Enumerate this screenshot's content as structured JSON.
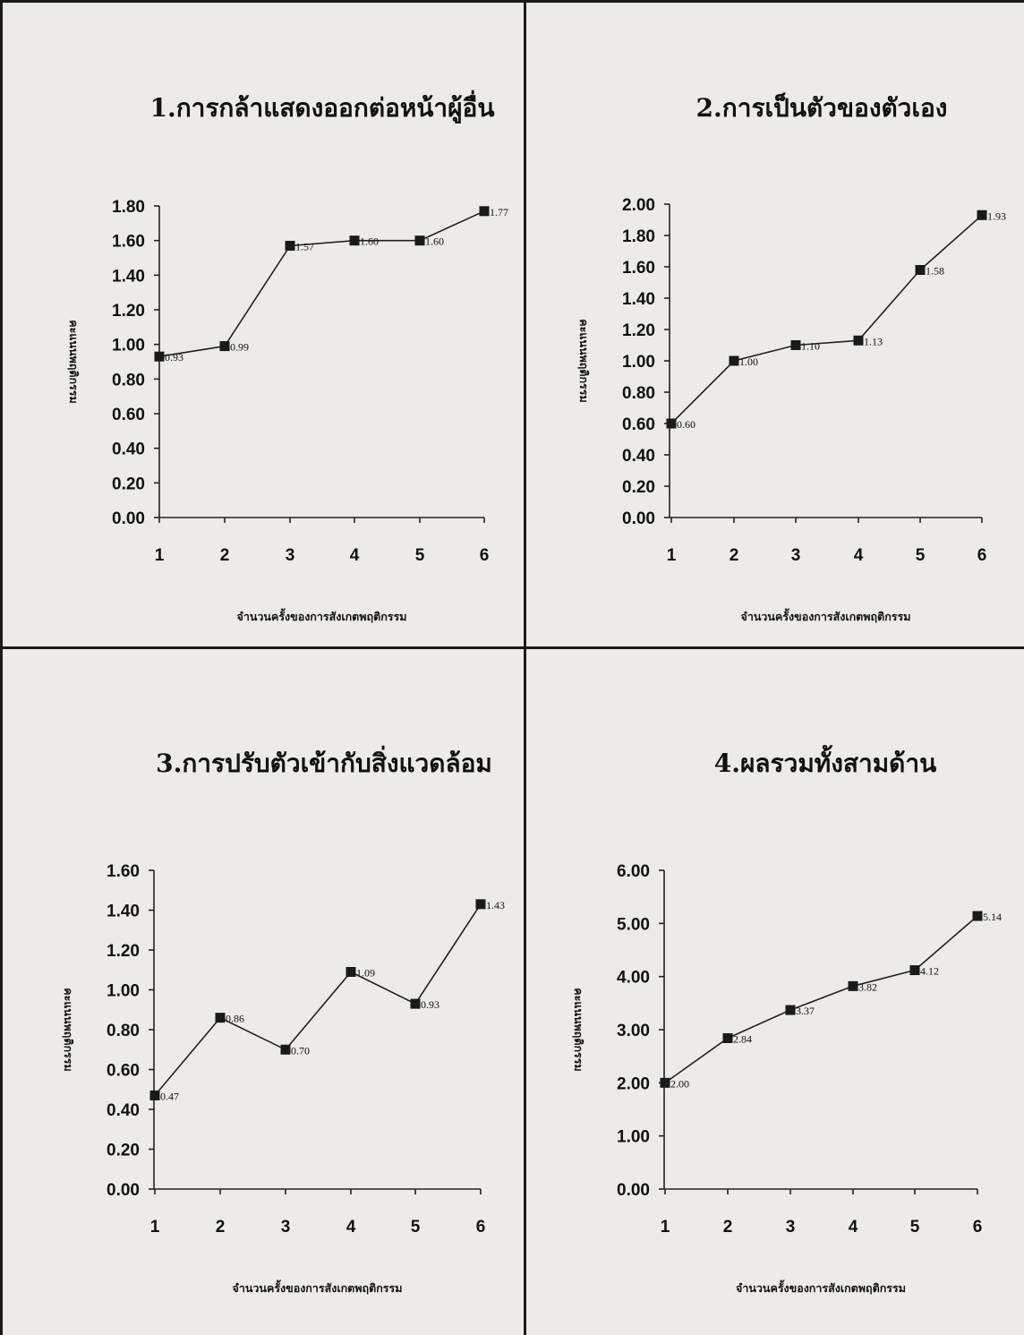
{
  "chart_data": [
    {
      "type": "line",
      "title": "1.การกล้าแสดงออกต่อหน้าผู้อื่น",
      "xlabel": "จำนวนครั้งของการสังเกตพฤติกรรม",
      "ylabel": "คะแนนพฤติกรรม",
      "x": [
        "1",
        "2",
        "3",
        "4",
        "5",
        "6"
      ],
      "values": [
        0.93,
        0.99,
        1.57,
        1.6,
        1.6,
        1.77
      ],
      "value_labels": [
        "0.93",
        "0.99",
        "1.57",
        "1.60",
        "1.60",
        "1.77"
      ],
      "ylim": [
        0,
        1.8
      ],
      "yticks": [
        "0.00",
        "0.20",
        "0.40",
        "0.60",
        "0.80",
        "1.00",
        "1.20",
        "1.40",
        "1.60",
        "1.80"
      ],
      "marker": "square",
      "grid": false
    },
    {
      "type": "line",
      "title": "2.การเป็นตัวของตัวเอง",
      "xlabel": "จำนวนครั้งของการสังเกตพฤติกรรม",
      "ylabel": "คะแนนพฤติกรรม",
      "x": [
        "1",
        "2",
        "3",
        "4",
        "5",
        "6"
      ],
      "values": [
        0.6,
        1.0,
        1.1,
        1.13,
        1.58,
        1.93
      ],
      "value_labels": [
        "0.60",
        "1.00",
        "1.10",
        "1.13",
        "1.58",
        "1.93"
      ],
      "ylim": [
        0,
        2.0
      ],
      "yticks": [
        "0.00",
        "0.20",
        "0.40",
        "0.60",
        "0.80",
        "1.00",
        "1.20",
        "1.40",
        "1.60",
        "1.80",
        "2.00"
      ],
      "marker": "square",
      "grid": false
    },
    {
      "type": "line",
      "title": "3.การปรับตัวเข้ากับสิ่งแวดล้อม",
      "xlabel": "จำนวนครั้งของการสังเกตพฤติกรรม",
      "ylabel": "คะแนนพฤติกรรม",
      "x": [
        "1",
        "2",
        "3",
        "4",
        "5",
        "6"
      ],
      "values": [
        0.47,
        0.86,
        0.7,
        1.09,
        0.93,
        1.43
      ],
      "value_labels": [
        "0.47",
        "0.86",
        "0.70",
        "1.09",
        "0.93",
        "1.43"
      ],
      "ylim": [
        0,
        1.6
      ],
      "yticks": [
        "0.00",
        "0.20",
        "0.40",
        "0.60",
        "0.80",
        "1.00",
        "1.20",
        "1.40",
        "1.60"
      ],
      "marker": "square",
      "grid": false
    },
    {
      "type": "line",
      "title": "4.ผลรวมทั้งสามด้าน",
      "xlabel": "จำนวนครั้งของการสังเกตพฤติกรรม",
      "ylabel": "คะแนนพฤติกรรม",
      "x": [
        "1",
        "2",
        "3",
        "4",
        "5",
        "6"
      ],
      "values": [
        2.0,
        2.84,
        3.37,
        3.82,
        4.12,
        5.14
      ],
      "value_labels": [
        "2.00",
        "2.84",
        "3.37",
        "3.82",
        "4.12",
        "5.14"
      ],
      "ylim": [
        0,
        6.0
      ],
      "yticks": [
        "0.00",
        "1.00",
        "2.00",
        "3.00",
        "4.00",
        "5.00",
        "6.00"
      ],
      "marker": "square",
      "grid": false
    }
  ]
}
